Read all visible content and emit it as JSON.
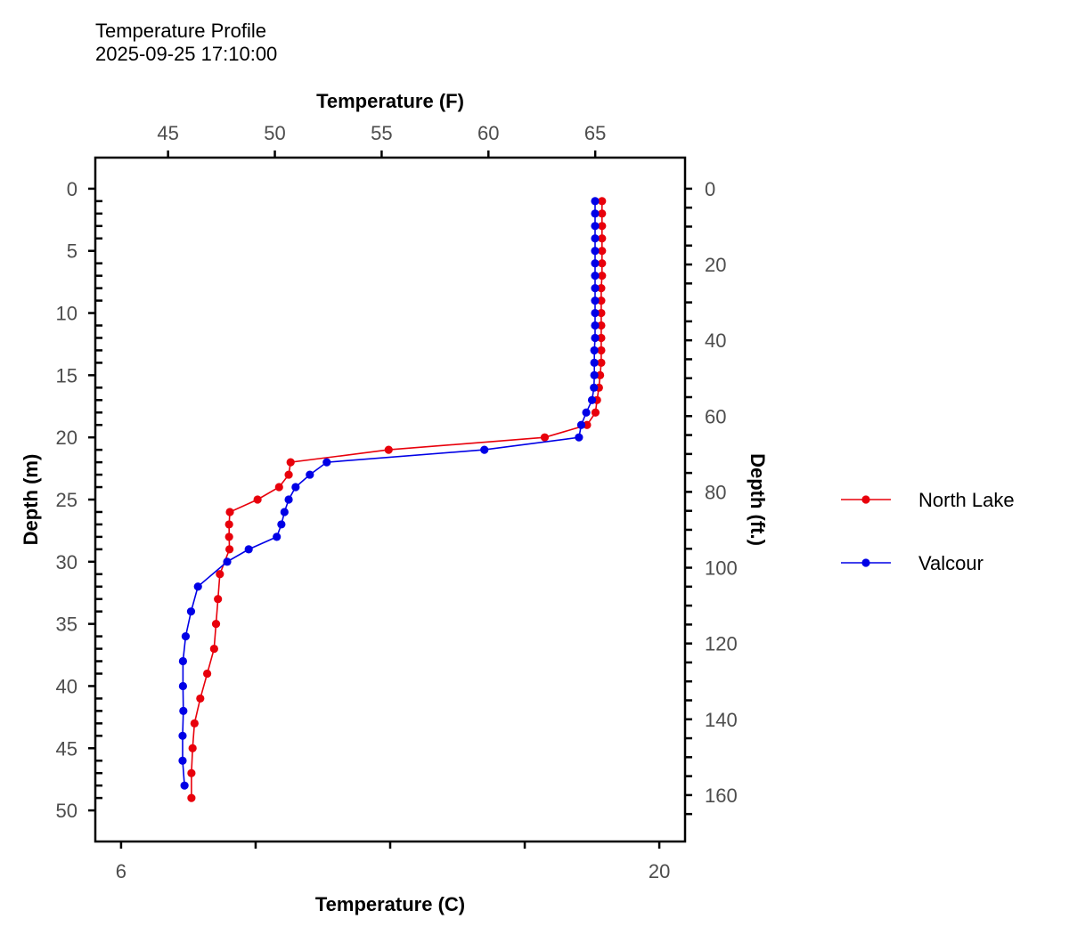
{
  "chart_data": {
    "type": "line",
    "title": "Temperature Profile",
    "subtitle": "2025-09-25 17:10:00",
    "xlabel_bottom": "Temperature (C)",
    "xlabel_top": "Temperature (F)",
    "ylabel_left": "Depth (m)",
    "ylabel_right": "Depth (ft.)",
    "xlim_c": [
      5.33,
      20.67
    ],
    "ylim_m": [
      -2.5,
      52.5
    ],
    "x_ticks_c": [
      6,
      9.5,
      13,
      16.5,
      20
    ],
    "x_tick_labels_c": [
      "6",
      "",
      "",
      "",
      "20"
    ],
    "x_ticks_f": [
      45,
      50,
      55,
      60,
      65
    ],
    "x_tick_labels_f": [
      "45",
      "50",
      "55",
      "60",
      "65"
    ],
    "y_ticks_m": [
      0,
      5,
      10,
      15,
      20,
      25,
      30,
      35,
      40,
      45,
      50
    ],
    "y_tick_labels_m": [
      "0",
      "5",
      "10",
      "15",
      "20",
      "25",
      "30",
      "35",
      "40",
      "45",
      "50"
    ],
    "y_ticks_ft": [
      0,
      20,
      40,
      60,
      80,
      100,
      120,
      140,
      160
    ],
    "y_tick_labels_ft": [
      "0",
      "20",
      "40",
      "60",
      "80",
      "100",
      "120",
      "140",
      "160"
    ],
    "grid": false,
    "legend_position": "right",
    "series": [
      {
        "name": "North Lake",
        "color": "#e8000b",
        "points": [
          [
            18.51,
            1
          ],
          [
            18.51,
            2
          ],
          [
            18.51,
            3
          ],
          [
            18.51,
            4
          ],
          [
            18.51,
            5
          ],
          [
            18.51,
            6
          ],
          [
            18.51,
            7
          ],
          [
            18.49,
            8
          ],
          [
            18.49,
            9
          ],
          [
            18.49,
            10
          ],
          [
            18.49,
            11
          ],
          [
            18.49,
            12
          ],
          [
            18.49,
            13
          ],
          [
            18.49,
            14
          ],
          [
            18.46,
            15
          ],
          [
            18.43,
            16
          ],
          [
            18.38,
            17
          ],
          [
            18.34,
            18
          ],
          [
            18.12,
            19
          ],
          [
            17.02,
            20
          ],
          [
            12.96,
            21
          ],
          [
            10.41,
            22
          ],
          [
            10.36,
            23
          ],
          [
            10.11,
            24
          ],
          [
            9.55,
            25
          ],
          [
            8.83,
            26
          ],
          [
            8.81,
            27
          ],
          [
            8.81,
            28
          ],
          [
            8.82,
            29
          ],
          [
            8.57,
            31
          ],
          [
            8.52,
            33
          ],
          [
            8.47,
            35
          ],
          [
            8.42,
            37
          ],
          [
            8.24,
            39
          ],
          [
            8.06,
            41
          ],
          [
            7.91,
            43
          ],
          [
            7.86,
            45
          ],
          [
            7.83,
            47
          ],
          [
            7.83,
            49
          ]
        ]
      },
      {
        "name": "Valcour",
        "color": "#0000e6",
        "points": [
          [
            18.33,
            1
          ],
          [
            18.33,
            2
          ],
          [
            18.33,
            3
          ],
          [
            18.33,
            4
          ],
          [
            18.33,
            5
          ],
          [
            18.33,
            6
          ],
          [
            18.33,
            7
          ],
          [
            18.33,
            8
          ],
          [
            18.33,
            9
          ],
          [
            18.33,
            10
          ],
          [
            18.33,
            11
          ],
          [
            18.33,
            12
          ],
          [
            18.31,
            13
          ],
          [
            18.31,
            14
          ],
          [
            18.31,
            15
          ],
          [
            18.3,
            16
          ],
          [
            18.25,
            17
          ],
          [
            18.1,
            18
          ],
          [
            17.97,
            19
          ],
          [
            17.91,
            20
          ],
          [
            15.45,
            21
          ],
          [
            11.35,
            22
          ],
          [
            10.91,
            23
          ],
          [
            10.54,
            24
          ],
          [
            10.36,
            25
          ],
          [
            10.25,
            26
          ],
          [
            10.17,
            27
          ],
          [
            10.05,
            28
          ],
          [
            9.32,
            29
          ],
          [
            8.76,
            30
          ],
          [
            8.0,
            32
          ],
          [
            7.82,
            34
          ],
          [
            7.68,
            36
          ],
          [
            7.61,
            38
          ],
          [
            7.61,
            40
          ],
          [
            7.62,
            42
          ],
          [
            7.6,
            44
          ],
          [
            7.6,
            46
          ],
          [
            7.65,
            48
          ]
        ]
      }
    ]
  }
}
